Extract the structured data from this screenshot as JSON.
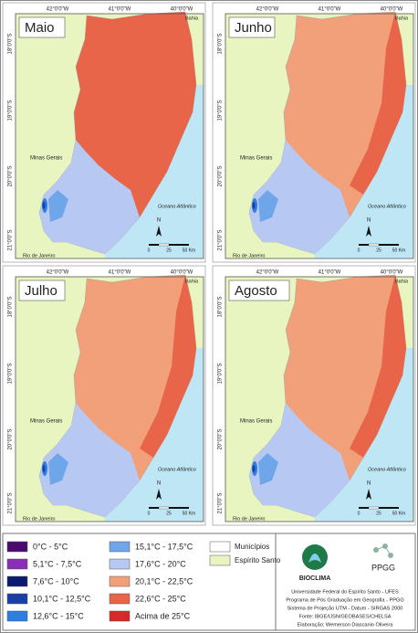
{
  "panels": [
    {
      "title": "Maio"
    },
    {
      "title": "Junho"
    },
    {
      "title": "Julho"
    },
    {
      "title": "Agosto"
    }
  ],
  "lon_labels": [
    "42°0'0\"W",
    "41°0'0\"W",
    "40°0'0\"W"
  ],
  "lat_labels": [
    "18°0'0\"S",
    "19°0'0\"S",
    "20°0'0\"S",
    "21°0'0\"S"
  ],
  "places": {
    "bahia": "Bahia",
    "minas": "Minas Gerais",
    "ocean": "Oceano Atlântico",
    "rio": "Rio de Janeiro"
  },
  "north": "N",
  "scale_labels": [
    "0",
    "25",
    "50 Km"
  ],
  "legend": {
    "classes": [
      {
        "label": "0°C - 5°C",
        "color": "#4b0a6e"
      },
      {
        "label": "5,1°C - 7,5°C",
        "color": "#8a2fb5"
      },
      {
        "label": "7,6°C - 10°C",
        "color": "#0a1a6e"
      },
      {
        "label": "10,1°C - 12,5°C",
        "color": "#1b3fa8"
      },
      {
        "label": "12,6°C - 15°C",
        "color": "#2e7de0"
      },
      {
        "label": "15,1°C - 17,5°C",
        "color": "#6fa6ea"
      },
      {
        "label": "17,6°C - 20°C",
        "color": "#b7c9f2"
      },
      {
        "label": "20,1°C - 22,5°C",
        "color": "#f2a07a"
      },
      {
        "label": "22,6°C - 25°C",
        "color": "#e8654a"
      },
      {
        "label": "Acima de 25°C",
        "color": "#d42a2a"
      }
    ],
    "other": [
      {
        "label": "Municípios",
        "color": "#ffffff"
      },
      {
        "label": "Espírito Santo",
        "color": "#e8f5c0"
      }
    ]
  },
  "logos": {
    "bioclima": "BIOCLIMA",
    "ppgg": "PPGG"
  },
  "credits": [
    "Universidade Federal do Espírito Santo - UFES",
    "Programa de Pós Graduação em Geografia - PPGG",
    "Sistema de Projeção UTM - Datum - SIRGAS 2000",
    "Fonte: IBGE/IJSN/GEOBASES/CHELSA",
    "Elaboração: Wemerson Diascanio Oliveira"
  ]
}
